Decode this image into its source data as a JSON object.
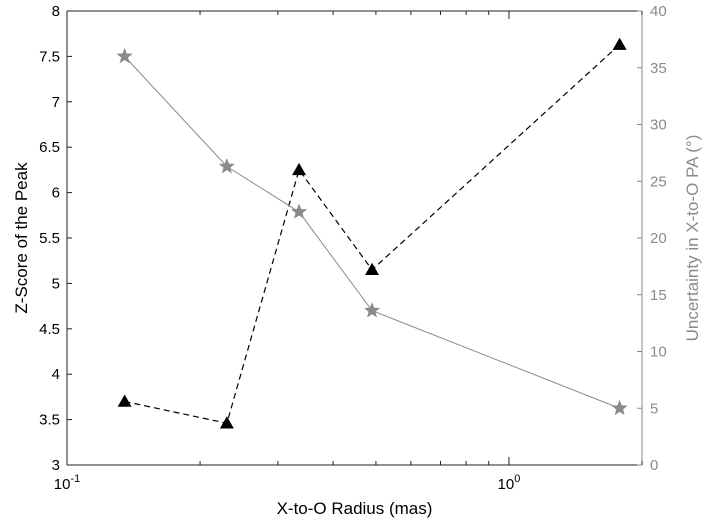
{
  "chart_data": {
    "type": "line",
    "xlabel": "X-to-O Radius (mas)",
    "ylabel_left": "Z-Score of the Peak",
    "ylabel_right": "Uncertainty in X-to-O PA (°)",
    "xscale": "log",
    "xlim": [
      0.1,
      2.0
    ],
    "x_ticks": [
      {
        "value": 0.1,
        "base": "10",
        "exp": "-1"
      },
      {
        "value": 1,
        "base": "10",
        "exp": "0"
      }
    ],
    "ylim_left": [
      3,
      8
    ],
    "yticks_left": [
      "3",
      "3.5",
      "4",
      "4.5",
      "5",
      "5.5",
      "6",
      "6.5",
      "7",
      "7.5",
      "8"
    ],
    "ylim_right": [
      0,
      40
    ],
    "yticks_right": [
      "0",
      "5",
      "10",
      "15",
      "20",
      "25",
      "30",
      "35",
      "40"
    ],
    "grid": false,
    "series": [
      {
        "axis": "left",
        "marker": "triangle",
        "line_style": "dashed",
        "color": "#000000",
        "points": [
          {
            "x": 0.135,
            "y": 3.7
          },
          {
            "x": 0.23,
            "y": 3.46
          },
          {
            "x": 0.335,
            "y": 6.25
          },
          {
            "x": 0.49,
            "y": 5.15
          },
          {
            "x": 1.78,
            "y": 7.63
          }
        ]
      },
      {
        "axis": "right",
        "marker": "star",
        "line_style": "solid",
        "color": "#8a8a8a",
        "points": [
          {
            "x": 0.135,
            "y": 36.0
          },
          {
            "x": 0.23,
            "y": 26.3
          },
          {
            "x": 0.335,
            "y": 22.3
          },
          {
            "x": 0.49,
            "y": 13.6
          },
          {
            "x": 1.78,
            "y": 5.0
          }
        ]
      }
    ]
  }
}
